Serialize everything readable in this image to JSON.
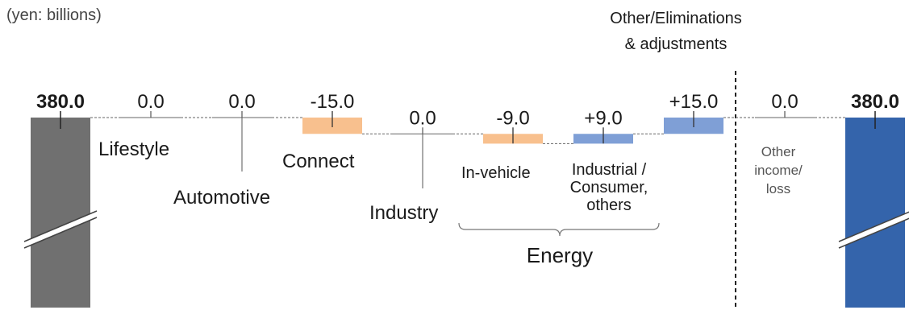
{
  "chart_data": {
    "type": "bar",
    "unit_label": "(yen: billions)",
    "bracket_labels": {
      "other_group": "Other/Eliminations\n& adjustments",
      "energy_group": "Energy"
    },
    "categories": [
      {
        "key": "start",
        "label": "",
        "value_text": "380.0",
        "value": 380.0,
        "kind": "total"
      },
      {
        "key": "lifestyle",
        "label": "Lifestyle",
        "value_text": "0.0",
        "value": 0.0,
        "kind": "delta"
      },
      {
        "key": "automotive",
        "label": "Automotive",
        "value_text": "0.0",
        "value": 0.0,
        "kind": "delta"
      },
      {
        "key": "connect",
        "label": "Connect",
        "value_text": "-15.0",
        "value": -15.0,
        "kind": "delta"
      },
      {
        "key": "industry",
        "label": "Industry",
        "value_text": "0.0",
        "value": 0.0,
        "kind": "delta"
      },
      {
        "key": "in_vehicle",
        "label": "In-vehicle",
        "value_text": "-9.0",
        "value": -9.0,
        "kind": "delta"
      },
      {
        "key": "industrial",
        "label": "Industrial /\nConsumer,\nothers",
        "value_text": "+9.0",
        "value": 9.0,
        "kind": "delta"
      },
      {
        "key": "other_elim",
        "label": "",
        "value_text": "+15.0",
        "value": 15.0,
        "kind": "delta"
      },
      {
        "key": "other_inc",
        "label": "Other\nincome/\nloss",
        "value_text": "0.0",
        "value": 0.0,
        "kind": "delta"
      },
      {
        "key": "end",
        "label": "",
        "value_text": "380.0",
        "value": 380.0,
        "kind": "total"
      }
    ],
    "colors": {
      "start_total": "#707070",
      "end_total": "#3464ab",
      "decrease": "#f8c08e",
      "increase": "#7f9fd6",
      "connector": "#666666",
      "text": "#1a1a1a",
      "muted_text": "#555555"
    }
  }
}
